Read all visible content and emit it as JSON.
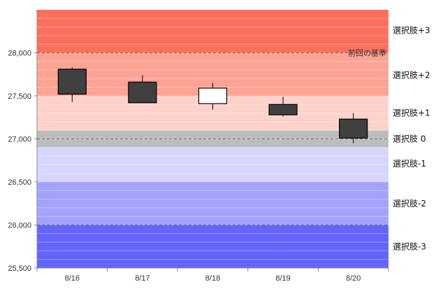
{
  "chart_data": {
    "type": "candlestick",
    "y_range": [
      25500,
      28500
    ],
    "y_ticks": [
      25500,
      26000,
      26500,
      27000,
      27500,
      28000
    ],
    "y_tick_labels": [
      "25,500",
      "26,000",
      "26,500",
      "27,000",
      "27,500",
      "28,000"
    ],
    "x_tick_labels": [
      "8/16",
      "8/17",
      "8/18",
      "8/19",
      "8/20"
    ],
    "candles": [
      {
        "date": "8/16",
        "open": 27810,
        "high": 27830,
        "low": 27430,
        "close": 27520
      },
      {
        "date": "8/17",
        "open": 27660,
        "high": 27740,
        "low": 27420,
        "close": 27420
      },
      {
        "date": "8/18",
        "open": 27410,
        "high": 27650,
        "low": 27340,
        "close": 27590
      },
      {
        "date": "8/19",
        "open": 27400,
        "high": 27490,
        "low": 27260,
        "close": 27280
      },
      {
        "date": "8/20",
        "open": 27230,
        "high": 27300,
        "low": 26950,
        "close": 27010
      }
    ],
    "zones": [
      {
        "name": "選択肢+3",
        "from": 28000,
        "to": 28500,
        "color": "#ff6f5e",
        "label_at": 28260
      },
      {
        "name": "選択肢+2",
        "from": 27500,
        "to": 28000,
        "color": "#ffa394",
        "label_at": 27740
      },
      {
        "name": "選択肢+1",
        "from": 27100,
        "to": 27500,
        "color": "#ffd1cb",
        "label_at": 27300
      },
      {
        "name": "選択肢 0",
        "from": 26900,
        "to": 27100,
        "color": "#bdbdbd",
        "label_at": 27000
      },
      {
        "name": "選択肢-1",
        "from": 26500,
        "to": 26900,
        "color": "#d6d6ff",
        "label_at": 26710
      },
      {
        "name": "選択肢-2",
        "from": 26000,
        "to": 26500,
        "color": "#a3a3ff",
        "label_at": 26250
      },
      {
        "name": "選択肢-3",
        "from": 25500,
        "to": 26000,
        "color": "#6464ff",
        "label_at": 25750
      }
    ],
    "reference_lines": [
      {
        "label": "前回の基準",
        "value": 28000,
        "label_at": 28000
      },
      {
        "label": "",
        "value": 27000
      },
      {
        "label": "",
        "value": 26000
      }
    ],
    "colors": {
      "candle_down": "#404040",
      "candle_up": "#ffffff",
      "candle_border": "#000000",
      "axis": "#888888"
    }
  }
}
